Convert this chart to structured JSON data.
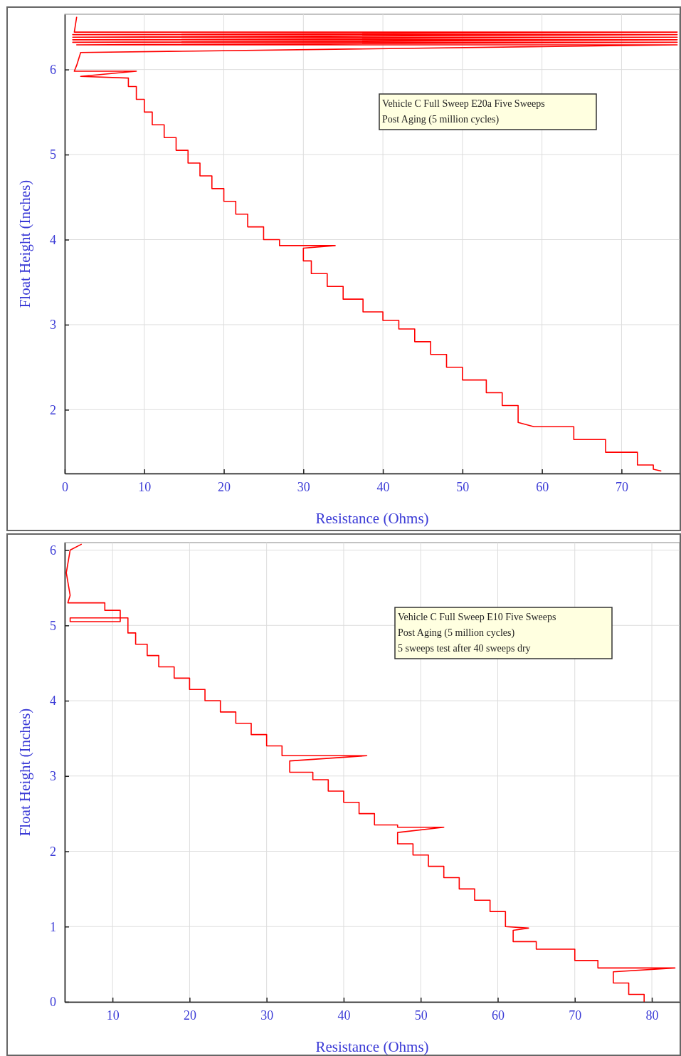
{
  "chart_data": [
    {
      "type": "line",
      "xlabel": "Resistance (Ohms)",
      "ylabel": "Float Height (Inches)",
      "xlim": [
        0,
        77.3
      ],
      "ylim": [
        1.25,
        6.65
      ],
      "xticks": [
        0,
        10,
        20,
        30,
        40,
        50,
        60,
        70
      ],
      "yticks": [
        2,
        3,
        4,
        5,
        6
      ],
      "grid": true,
      "marker": "none",
      "line_style": "solid",
      "annotations": [
        "Vehicle C Full Sweep E20a Five Sweeps",
        "Post Aging (5 million cycles)"
      ],
      "series": [
        {
          "color": "#ff0000",
          "x": [
            1.5,
            1.2,
            77,
            1,
            77,
            1,
            77,
            1,
            77,
            1,
            77,
            1.5,
            77,
            2,
            1.5,
            1.2,
            9,
            2,
            8,
            8,
            9,
            9,
            10,
            10,
            11,
            11,
            12.5,
            12.5,
            14,
            14,
            15.5,
            15.5,
            17,
            17,
            18.5,
            18.5,
            20,
            20,
            21.5,
            21.5,
            23,
            23,
            25,
            25,
            27,
            27,
            34,
            30,
            30,
            31,
            31,
            33,
            33,
            35,
            35,
            37.5,
            37.5,
            40,
            40,
            42,
            42,
            44,
            44,
            46,
            46,
            48,
            48,
            50,
            50,
            53,
            53,
            55,
            55,
            57,
            57,
            59,
            64,
            64,
            68,
            68,
            72,
            72,
            74,
            74,
            75
          ],
          "values": [
            6.62,
            6.44,
            6.44,
            6.41,
            6.41,
            6.38,
            6.38,
            6.35,
            6.35,
            6.32,
            6.32,
            6.29,
            6.29,
            6.2,
            6.05,
            5.98,
            5.98,
            5.92,
            5.9,
            5.8,
            5.8,
            5.65,
            5.65,
            5.5,
            5.5,
            5.35,
            5.35,
            5.2,
            5.2,
            5.05,
            5.05,
            4.9,
            4.9,
            4.75,
            4.75,
            4.6,
            4.6,
            4.45,
            4.45,
            4.3,
            4.3,
            4.15,
            4.15,
            4.0,
            4.0,
            3.93,
            3.93,
            3.9,
            3.75,
            3.75,
            3.6,
            3.6,
            3.45,
            3.45,
            3.3,
            3.3,
            3.15,
            3.15,
            3.05,
            3.05,
            2.95,
            2.95,
            2.8,
            2.8,
            2.65,
            2.65,
            2.5,
            2.5,
            2.35,
            2.35,
            2.2,
            2.2,
            2.05,
            2.05,
            1.85,
            1.8,
            1.8,
            1.65,
            1.65,
            1.5,
            1.5,
            1.35,
            1.35,
            1.3,
            1.28
          ]
        }
      ]
    },
    {
      "type": "line",
      "xlabel": "Resistance (Ohms)",
      "ylabel": "Float Height (Inches)",
      "xlim": [
        3.8,
        83.6
      ],
      "ylim": [
        0,
        6.1
      ],
      "xticks": [
        10,
        20,
        30,
        40,
        50,
        60,
        70,
        80
      ],
      "yticks": [
        0,
        1,
        2,
        3,
        4,
        5,
        6
      ],
      "grid": true,
      "marker": "none",
      "line_style": "solid",
      "annotations": [
        "Vehicle C Full Sweep E10 Five Sweeps",
        "Post Aging (5 million cycles)",
        "5 sweeps test after 40 sweeps dry"
      ],
      "series": [
        {
          "color": "#ff0000",
          "x": [
            6,
            4.5,
            4,
            4.5,
            4.2,
            9,
            9,
            11,
            11,
            4.5,
            4.5,
            12,
            12,
            13,
            13,
            14.5,
            14.5,
            16,
            16,
            18,
            18,
            20,
            20,
            22,
            22,
            24,
            24,
            26,
            26,
            28,
            28,
            30,
            30,
            32,
            32,
            43,
            33,
            33,
            36,
            36,
            38,
            38,
            40,
            40,
            42,
            42,
            44,
            44,
            47,
            47,
            53,
            47,
            47,
            49,
            49,
            51,
            51,
            53,
            53,
            55,
            55,
            57,
            57,
            59,
            59,
            61,
            61,
            64,
            62,
            62,
            65,
            65,
            70,
            70,
            73,
            73,
            83,
            75,
            75,
            77,
            77,
            79,
            79
          ],
          "values": [
            6.08,
            6.0,
            5.7,
            5.4,
            5.3,
            5.3,
            5.2,
            5.2,
            5.05,
            5.05,
            5.1,
            5.1,
            4.9,
            4.9,
            4.75,
            4.75,
            4.6,
            4.6,
            4.45,
            4.45,
            4.3,
            4.3,
            4.15,
            4.15,
            4.0,
            4.0,
            3.85,
            3.85,
            3.7,
            3.7,
            3.55,
            3.55,
            3.4,
            3.4,
            3.27,
            3.27,
            3.2,
            3.05,
            3.05,
            2.95,
            2.95,
            2.8,
            2.8,
            2.65,
            2.65,
            2.5,
            2.5,
            2.35,
            2.35,
            2.32,
            2.32,
            2.25,
            2.1,
            2.1,
            1.95,
            1.95,
            1.8,
            1.8,
            1.65,
            1.65,
            1.5,
            1.5,
            1.35,
            1.35,
            1.2,
            1.2,
            1.0,
            0.98,
            0.95,
            0.8,
            0.8,
            0.7,
            0.7,
            0.55,
            0.55,
            0.45,
            0.45,
            0.4,
            0.25,
            0.25,
            0.1,
            0.1,
            0.0
          ]
        }
      ]
    }
  ]
}
